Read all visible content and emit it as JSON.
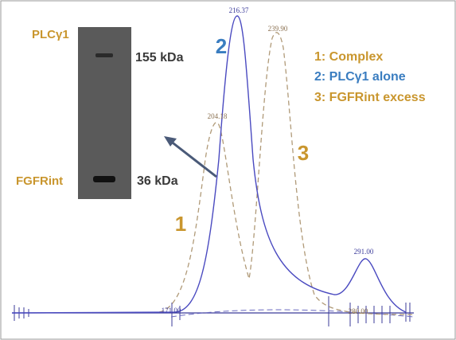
{
  "gel": {
    "bands": [
      {
        "protein": "PLCγ1",
        "size": "155 kDa"
      },
      {
        "protein": "FGFRint",
        "size": "36 kDa"
      }
    ]
  },
  "curve_numbers": [
    "1",
    "2",
    "3"
  ],
  "legend": [
    "1: Complex",
    "2: PLCγ1 alone",
    "3: FGFRint excess"
  ],
  "peak_labels": [
    "216.37",
    "239.90",
    "204.18",
    "291.00",
    "171.00",
    "280.00"
  ]
}
